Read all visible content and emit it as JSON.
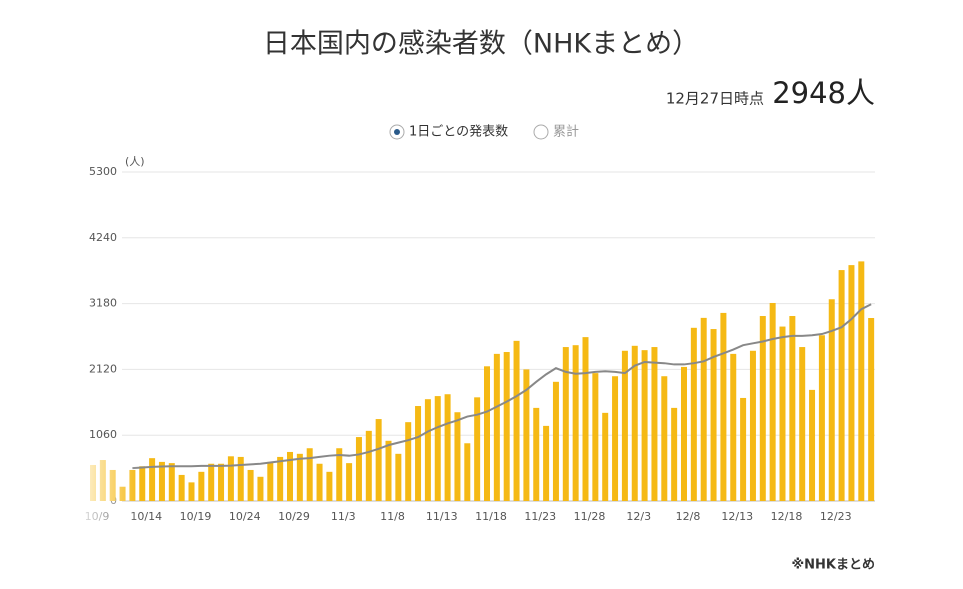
{
  "chart_data": {
    "type": "bar",
    "title": "日本国内の感染者数（NHKまとめ）",
    "as_of": "12月27日時点",
    "headline": "2948人",
    "toggle": [
      "1日ごとの発表数",
      "累計"
    ],
    "y_label": "(人)",
    "source": "※NHKまとめ",
    "color": "#f5b914",
    "line_color": "#888888",
    "categories": [
      "10/9",
      null,
      null,
      null,
      null,
      "10/14",
      null,
      null,
      null,
      null,
      "10/19",
      null,
      null,
      null,
      null,
      "10/24",
      null,
      null,
      null,
      null,
      "10/29",
      null,
      null,
      null,
      null,
      "11/3",
      null,
      null,
      null,
      null,
      "11/8",
      null,
      null,
      null,
      null,
      "11/13",
      null,
      null,
      null,
      null,
      "11/18",
      null,
      null,
      null,
      null,
      "11/23",
      null,
      null,
      null,
      null,
      "11/28",
      null,
      null,
      null,
      null,
      "12/3",
      null,
      null,
      null,
      null,
      "12/8",
      null,
      null,
      null,
      null,
      "12/13",
      null,
      null,
      null,
      null,
      "12/18",
      null,
      null,
      null,
      null,
      "12/23",
      null,
      null,
      null,
      null
    ],
    "values": [
      580,
      660,
      500,
      230,
      500,
      560,
      690,
      630,
      610,
      420,
      300,
      470,
      600,
      600,
      720,
      710,
      500,
      390,
      630,
      710,
      790,
      760,
      850,
      600,
      470,
      850,
      610,
      1030,
      1130,
      1320,
      970,
      760,
      1270,
      1530,
      1640,
      1690,
      1720,
      1430,
      930,
      1670,
      2170,
      2370,
      2400,
      2580,
      2120,
      1500,
      1210,
      1920,
      2480,
      2510,
      2640,
      2060,
      1420,
      2010,
      2420,
      2500,
      2430,
      2480,
      2010,
      1500,
      2160,
      2790,
      2950,
      2770,
      3030,
      2370,
      1660,
      2420,
      2980,
      3190,
      2810,
      2980,
      2480,
      1790,
      2670,
      3250,
      3720,
      3800,
      3860,
      2948
    ],
    "line_values": [
      null,
      null,
      null,
      null,
      530,
      540,
      550,
      555,
      560,
      560,
      560,
      565,
      565,
      565,
      570,
      580,
      590,
      600,
      620,
      640,
      660,
      680,
      690,
      710,
      730,
      740,
      730,
      750,
      790,
      840,
      900,
      940,
      980,
      1030,
      1120,
      1190,
      1250,
      1300,
      1360,
      1390,
      1440,
      1520,
      1600,
      1690,
      1790,
      1920,
      2040,
      2140,
      2080,
      2050,
      2060,
      2080,
      2090,
      2080,
      2060,
      2180,
      2240,
      2230,
      2220,
      2200,
      2200,
      2220,
      2250,
      2320,
      2380,
      2440,
      2510,
      2540,
      2570,
      2610,
      2640,
      2660,
      2660,
      2670,
      2690,
      2740,
      2800,
      2930,
      3090,
      3170
    ],
    "ylim": [
      0,
      5300
    ],
    "yticks": [
      0,
      1060,
      2120,
      3180,
      4240,
      5300
    ],
    "grid": true
  }
}
